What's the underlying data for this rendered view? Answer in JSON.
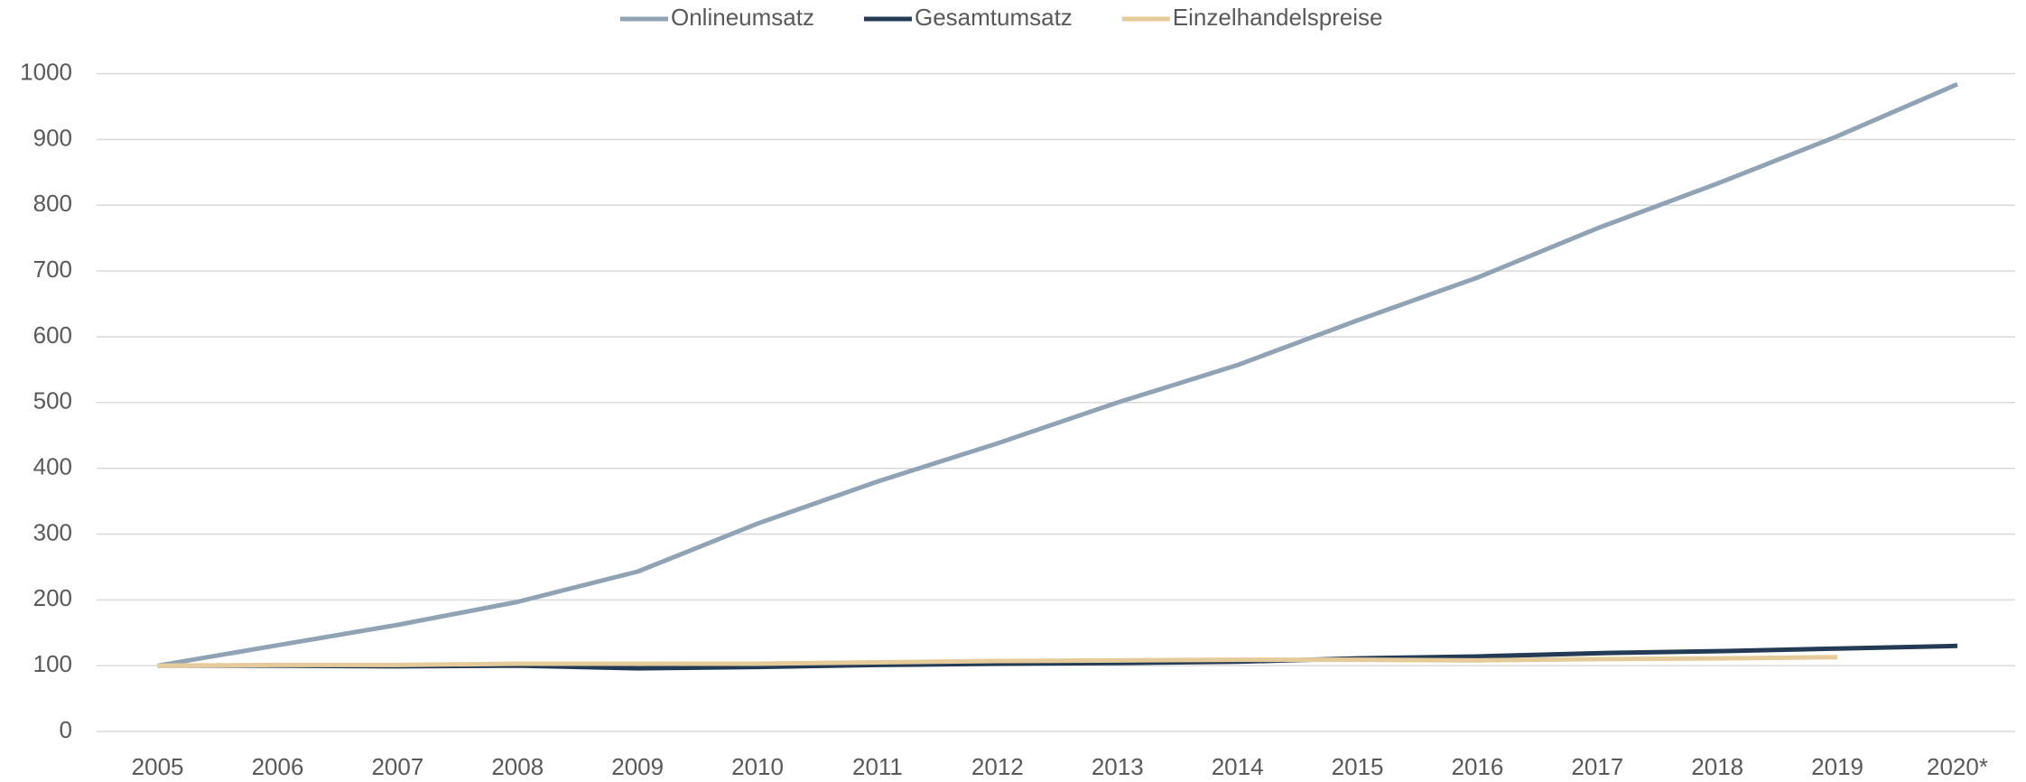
{
  "chart_data": {
    "type": "line",
    "categories": [
      "2005",
      "2006",
      "2007",
      "2008",
      "2009",
      "2010",
      "2011",
      "2012",
      "2013",
      "2014",
      "2015",
      "2016",
      "2017",
      "2018",
      "2019",
      "2020*"
    ],
    "series": [
      {
        "name": "Onlineumsatz",
        "color": "#8fa3b5",
        "values": [
          100,
          131,
          162,
          197,
          243,
          316,
          380,
          438,
          500,
          557,
          625,
          690,
          765,
          833,
          905,
          984
        ]
      },
      {
        "name": "Gesamtumsatz",
        "color": "#243b55",
        "values": [
          100,
          100,
          99,
          100,
          96,
          98,
          101,
          103,
          104,
          106,
          111,
          114,
          119,
          122,
          126,
          130
        ]
      },
      {
        "name": "Einzelhandelspreise",
        "color": "#e6cb9a",
        "values": [
          100,
          101,
          101,
          103,
          103,
          103,
          105,
          107,
          108,
          109,
          109,
          108,
          110,
          111,
          113,
          null
        ]
      }
    ],
    "ylim": [
      0,
      1000
    ],
    "yticks": [
      0,
      100,
      200,
      300,
      400,
      500,
      600,
      700,
      800,
      900,
      1000
    ],
    "grid": true,
    "legend": "top"
  }
}
